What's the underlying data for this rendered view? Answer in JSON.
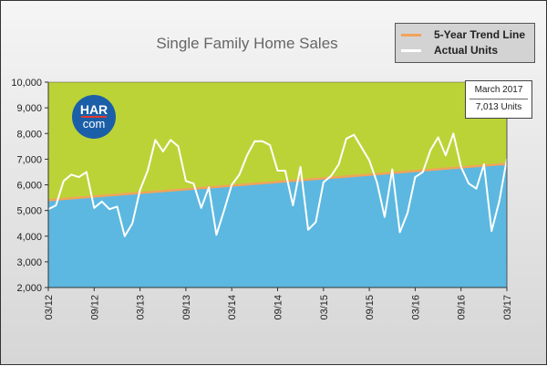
{
  "chart_data": {
    "type": "area",
    "title": "Single Family Home Sales",
    "xlabel": "",
    "ylabel": "",
    "ylim": [
      2000,
      10000
    ],
    "yticks": [
      "2,000",
      "3,000",
      "4,000",
      "5,000",
      "6,000",
      "7,000",
      "8,000",
      "9,000",
      "10,000"
    ],
    "x_tick_labels": [
      "03/12",
      "09/12",
      "03/13",
      "09/13",
      "03/14",
      "09/14",
      "03/15",
      "09/15",
      "03/16",
      "09/16",
      "03/17"
    ],
    "x": [
      "03/12",
      "04/12",
      "05/12",
      "06/12",
      "07/12",
      "08/12",
      "09/12",
      "10/12",
      "11/12",
      "12/12",
      "01/13",
      "02/13",
      "03/13",
      "04/13",
      "05/13",
      "06/13",
      "07/13",
      "08/13",
      "09/13",
      "10/13",
      "11/13",
      "12/13",
      "01/14",
      "02/14",
      "03/14",
      "04/14",
      "05/14",
      "06/14",
      "07/14",
      "08/14",
      "09/14",
      "10/14",
      "11/14",
      "12/14",
      "01/15",
      "02/15",
      "03/15",
      "04/15",
      "05/15",
      "06/15",
      "07/15",
      "08/15",
      "09/15",
      "10/15",
      "11/15",
      "12/15",
      "01/16",
      "02/16",
      "03/16",
      "04/16",
      "05/16",
      "06/16",
      "07/16",
      "08/16",
      "09/16",
      "10/16",
      "11/16",
      "12/16",
      "01/17",
      "02/17",
      "03/17"
    ],
    "series": [
      {
        "name": "Actual Units",
        "color": "#ffffff",
        "values": [
          5050,
          5200,
          6150,
          6400,
          6300,
          6500,
          5100,
          5350,
          5050,
          5150,
          4000,
          4500,
          5800,
          6550,
          7750,
          7300,
          7750,
          7500,
          6150,
          6050,
          5100,
          5900,
          4050,
          5000,
          6000,
          6400,
          7150,
          7700,
          7700,
          7550,
          6550,
          6550,
          5200,
          6700,
          4250,
          4550,
          6100,
          6350,
          6800,
          7800,
          7950,
          7450,
          6950,
          6100,
          4750,
          6600,
          4150,
          4900,
          6300,
          6500,
          7350,
          7850,
          7150,
          8000,
          6700,
          6050,
          5850,
          6800,
          4200,
          5350,
          7013
        ]
      },
      {
        "name": "5-Year Trend Line",
        "color": "#f0a35a",
        "start": 5400,
        "end": 6820
      }
    ],
    "fill_above_color": "#bcd337",
    "fill_below_color": "#5cb8e0",
    "grid": false,
    "legend_position": "top-right",
    "annotation": {
      "month": "March 2017",
      "value": "7,013 Units"
    }
  },
  "logo": {
    "top": "HAR",
    "bottom": "com"
  }
}
